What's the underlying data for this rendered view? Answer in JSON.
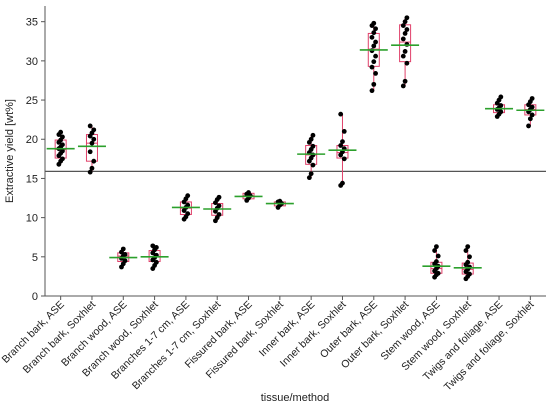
{
  "chart_data": {
    "type": "box",
    "title": "",
    "xlabel": "tissue/method",
    "ylabel": "Extractive yield [wt%]",
    "ylim": [
      0,
      37
    ],
    "yticks": [
      0,
      5,
      10,
      15,
      20,
      25,
      30,
      35
    ],
    "grid": false,
    "reference_line": 15.9,
    "colors": {
      "box": "#e0406a",
      "mean": "#2ca02c",
      "point": "#000000",
      "axis": "#555555",
      "reference": "#555555"
    },
    "categories": [
      "Branch bark, ASE",
      "Branch bark, Soxhlet",
      "Branch wood, ASE",
      "Branch wood, Soxhlet",
      "Branches 1-7 cm, ASE",
      "Branches 1-7 cm, Soxhlet",
      "Fissured bark, ASE",
      "Fissured bark, Soxhlet",
      "Inner bark, ASE",
      "Inner bark, Soxhlet",
      "Outer bark, ASE",
      "Outer bark, Soxhlet",
      "Stem wood, ASE",
      "Stem wood, Soxhlet",
      "Twigs and foliage, ASE",
      "Twigs and foliage, Soxhlet"
    ],
    "boxes": [
      {
        "min": 16.8,
        "q1": 17.6,
        "median": 18.7,
        "q3": 19.9,
        "max": 20.9,
        "mean": 18.8
      },
      {
        "min": 15.8,
        "q1": 17.2,
        "median": 19.5,
        "q3": 20.6,
        "max": 21.7,
        "mean": 19.1
      },
      {
        "min": 3.7,
        "q1": 4.4,
        "median": 5.1,
        "q3": 5.5,
        "max": 6.0,
        "mean": 4.9
      },
      {
        "min": 3.5,
        "q1": 4.4,
        "median": 5.0,
        "q3": 5.8,
        "max": 6.4,
        "mean": 5.0
      },
      {
        "min": 9.8,
        "q1": 10.4,
        "median": 11.2,
        "q3": 12.0,
        "max": 12.8,
        "mean": 11.3
      },
      {
        "min": 9.6,
        "q1": 10.3,
        "median": 11.1,
        "q3": 11.8,
        "max": 12.6,
        "mean": 11.1
      },
      {
        "min": 12.2,
        "q1": 12.4,
        "median": 12.8,
        "q3": 13.1,
        "max": 13.2,
        "mean": 12.7
      },
      {
        "min": 11.3,
        "q1": 11.5,
        "median": 11.8,
        "q3": 12.0,
        "max": 12.1,
        "mean": 11.8
      },
      {
        "min": 15.1,
        "q1": 16.8,
        "median": 18.0,
        "q3": 19.2,
        "max": 20.5,
        "mean": 18.1
      },
      {
        "min": 14.1,
        "q1": 17.6,
        "median": 18.3,
        "q3": 19.2,
        "max": 23.2,
        "mean": 18.6
      },
      {
        "min": 26.2,
        "q1": 29.3,
        "median": 31.5,
        "q3": 33.5,
        "max": 34.8,
        "mean": 31.4
      },
      {
        "min": 26.8,
        "q1": 29.9,
        "median": 32.4,
        "q3": 34.6,
        "max": 35.5,
        "mean": 32.0
      },
      {
        "min": 2.4,
        "q1": 2.9,
        "median": 3.5,
        "q3": 4.3,
        "max": 6.3,
        "mean": 3.8
      },
      {
        "min": 2.2,
        "q1": 2.8,
        "median": 3.4,
        "q3": 4.2,
        "max": 6.3,
        "mean": 3.6
      },
      {
        "min": 22.9,
        "q1": 23.4,
        "median": 23.9,
        "q3": 24.4,
        "max": 25.4,
        "mean": 23.9
      },
      {
        "min": 21.7,
        "q1": 23.1,
        "median": 23.8,
        "q3": 24.4,
        "max": 25.2,
        "mean": 23.7
      }
    ],
    "points": [
      [
        16.8,
        17.2,
        17.5,
        17.9,
        18.2,
        18.5,
        18.8,
        19.0,
        19.3,
        19.6,
        19.9,
        20.3,
        20.6,
        20.9
      ],
      [
        15.8,
        16.3,
        17.2,
        18.4,
        19.5,
        20.0,
        20.4,
        20.8,
        21.2,
        21.7
      ],
      [
        3.7,
        4.1,
        4.5,
        4.8,
        5.1,
        5.3,
        5.6,
        6.0
      ],
      [
        3.5,
        3.9,
        4.3,
        4.6,
        4.9,
        5.2,
        5.5,
        5.9,
        6.2,
        6.4
      ],
      [
        9.8,
        10.1,
        10.5,
        10.9,
        11.3,
        11.6,
        12.0,
        12.4,
        12.8
      ],
      [
        9.6,
        10.0,
        10.4,
        10.8,
        11.2,
        11.5,
        11.9,
        12.3,
        12.6
      ],
      [
        12.2,
        12.5,
        12.8,
        13.0,
        13.2
      ],
      [
        11.3,
        11.6,
        11.8,
        12.0,
        12.1
      ],
      [
        15.1,
        15.6,
        16.7,
        17.2,
        17.6,
        18.0,
        18.3,
        18.7,
        19.1,
        19.6,
        20.0,
        20.5
      ],
      [
        14.1,
        14.4,
        17.5,
        18.0,
        18.4,
        18.8,
        19.2,
        19.7,
        21.0,
        23.2
      ],
      [
        26.2,
        27.0,
        28.4,
        29.2,
        29.9,
        30.6,
        31.3,
        31.9,
        32.4,
        33.0,
        33.6,
        34.1,
        34.5,
        34.8
      ],
      [
        26.8,
        27.4,
        29.7,
        30.6,
        31.2,
        32.1,
        32.8,
        33.5,
        34.0,
        34.5,
        35.0,
        35.5
      ],
      [
        2.4,
        2.7,
        2.9,
        3.2,
        3.5,
        3.8,
        4.1,
        4.4,
        5.1,
        5.8,
        6.3
      ],
      [
        2.2,
        2.5,
        2.8,
        3.1,
        3.4,
        3.7,
        4.0,
        4.3,
        5.0,
        5.8,
        6.3
      ],
      [
        22.9,
        23.2,
        23.5,
        23.8,
        24.0,
        24.3,
        24.6,
        25.0,
        25.4
      ],
      [
        21.7,
        22.6,
        23.1,
        23.5,
        23.8,
        24.1,
        24.4,
        24.8,
        25.2
      ]
    ]
  }
}
